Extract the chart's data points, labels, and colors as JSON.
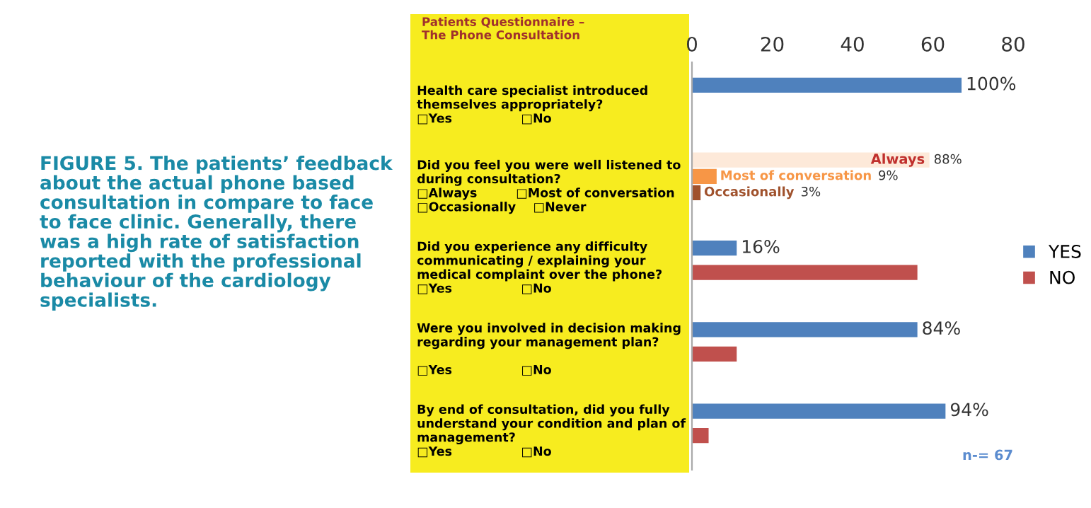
{
  "chart_data": {
    "type": "bar",
    "orientation": "horizontal",
    "title": "FIGURE 5. The patients’ feedback\nabout the actual phone based\nconsultation in compare to face\nto face clinic. Generally, there\nwas a high rate of satisfaction\nreported with the professional\nbehaviour of the cardiology\nspecialists.",
    "subtitle": "Patients Questionnaire –\nThe Phone Consultation",
    "categories": [
      "Health care specialist introduced\nthemselves appropriately?\n□Yes                □No",
      "Did you feel you were well listened to\nduring consultation?\n□Always         □Most of conversation\n□Occasionally    □Never",
      "Did you experience any difficulty\ncommunicating / explaining your\nmedical complaint over the phone?\n□Yes                □No",
      "Were you involved in decision making\nregarding your management plan?\n\n□Yes                □No",
      "By end of consultation, did you fully\nunderstand your condition and plan of\nmanagement?\n□Yes                □No"
    ],
    "series": [
      {
        "name": "YES",
        "color": "#4f81bd",
        "values": [
          67,
          null,
          11,
          56,
          63
        ]
      },
      {
        "name": "NO",
        "color": "#c0504d",
        "values": [
          0,
          null,
          56,
          11,
          4
        ]
      },
      {
        "name": "Always",
        "color": "#fde9d9",
        "values": [
          null,
          59,
          null,
          null,
          null
        ]
      },
      {
        "name": "Most of conversation",
        "color": "#f79646",
        "values": [
          null,
          6,
          null,
          null,
          null
        ]
      },
      {
        "name": "Occasionally",
        "color": "#a0522d",
        "values": [
          null,
          2,
          null,
          null,
          null
        ]
      }
    ],
    "xlim": [
      0,
      80
    ],
    "xticks": [
      0,
      20,
      40,
      60,
      80
    ],
    "grid": false,
    "legend": "right",
    "annotations": [
      "100%",
      "88%",
      "9%",
      "3%",
      "16%",
      "84%",
      "94%",
      "n-= 67"
    ]
  }
}
